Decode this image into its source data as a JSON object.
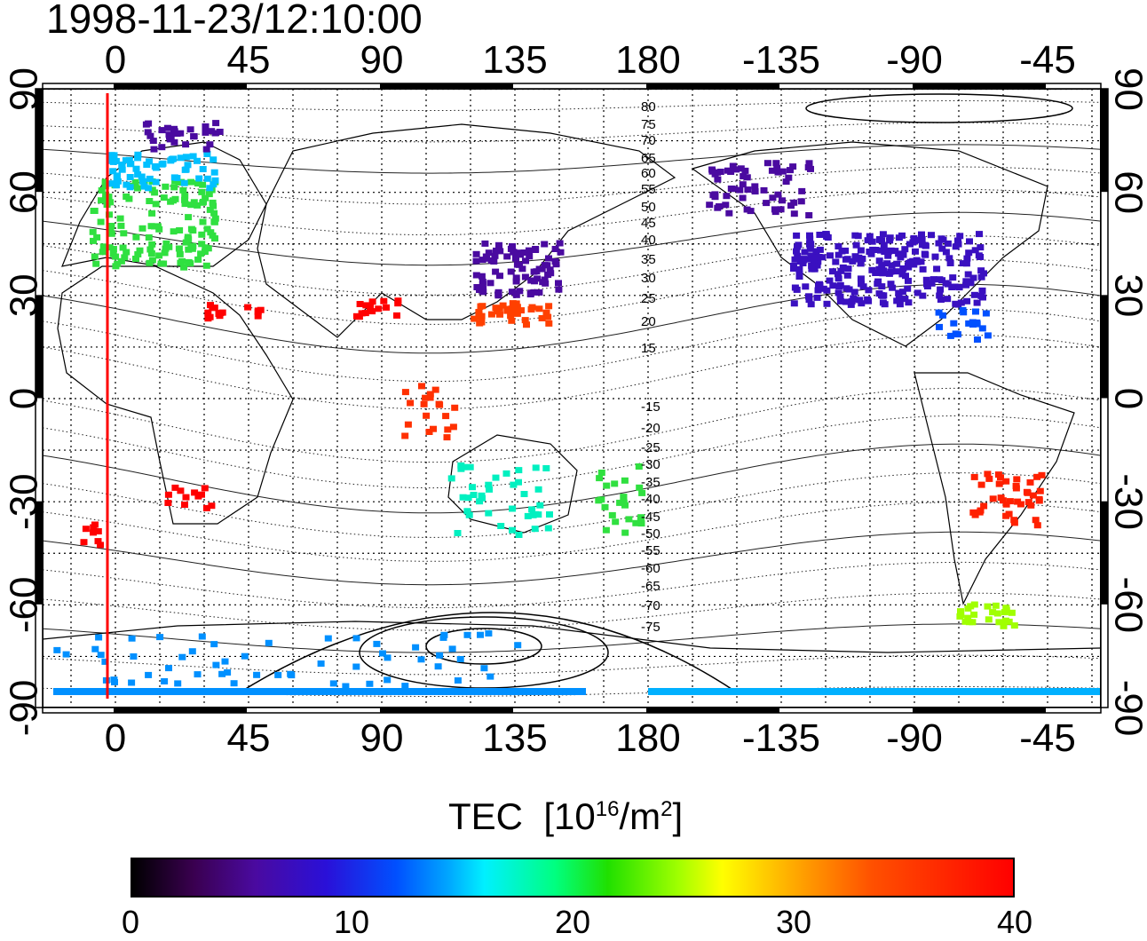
{
  "title": "1998-11-23/12:10:00",
  "map": {
    "x_ticks_top": [
      "0",
      "45",
      "90",
      "135",
      "180",
      "-135",
      "-90",
      "-45"
    ],
    "x_ticks_bottom": [
      "0",
      "45",
      "90",
      "135",
      "180",
      "-135",
      "-90",
      "-45"
    ],
    "y_ticks": [
      "90",
      "60",
      "30",
      "0",
      "-30",
      "-60",
      "-90"
    ],
    "contour_labels": [
      "80",
      "75",
      "70",
      "65",
      "60",
      "55",
      "50",
      "45",
      "40",
      "35",
      "30",
      "25",
      "20",
      "15",
      "-15",
      "-20",
      "-25",
      "-30",
      "-35",
      "-40",
      "-45",
      "-50",
      "-55",
      "-60",
      "-65",
      "-70",
      "-75"
    ]
  },
  "colorbar": {
    "title_main": "TEC",
    "title_unit_prefix": "[10",
    "title_exp": "16",
    "title_unit_mid": "/m",
    "title_exp2": "2",
    "title_unit_suffix": "]",
    "ticks": [
      "0",
      "10",
      "20",
      "30",
      "40"
    ],
    "min": 0,
    "max": 40,
    "colors": [
      "#000000",
      "#4a0aa0",
      "#0050ff",
      "#00f0ff",
      "#20e000",
      "#ffff00",
      "#ff5000",
      "#ff0000"
    ]
  },
  "marker_color": "#ff0000"
}
